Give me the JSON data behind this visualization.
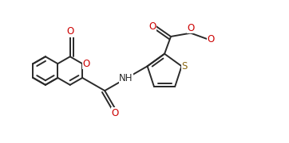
{
  "background_color": "#ffffff",
  "line_color": "#2a2a2a",
  "atom_O_color": "#cc0000",
  "atom_S_color": "#8B6914",
  "atom_N_color": "#2a2a2a",
  "line_width": 1.4,
  "figsize": [
    3.62,
    1.8
  ],
  "dpi": 100,
  "xlim": [
    0,
    9.5
  ],
  "ylim": [
    0,
    4.75
  ]
}
